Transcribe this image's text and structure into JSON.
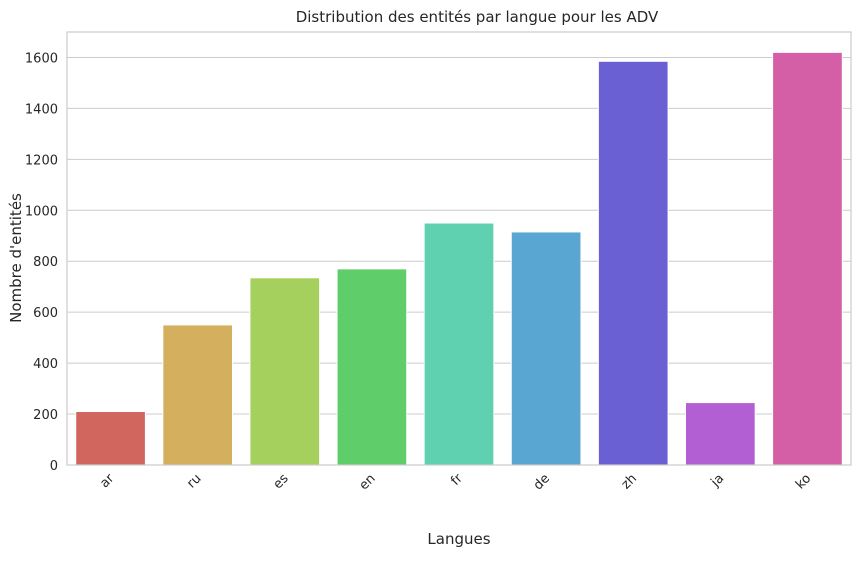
{
  "chart_data": {
    "type": "bar",
    "title": "Distribution des entités par langue pour les ADV",
    "xlabel": "Langues",
    "ylabel": "Nombre d'entités",
    "categories": [
      "ar",
      "ru",
      "es",
      "en",
      "fr",
      "de",
      "zh",
      "ja",
      "ko"
    ],
    "values": [
      210,
      550,
      735,
      770,
      950,
      915,
      1585,
      245,
      1620
    ],
    "colors": [
      "#d1665e",
      "#d4b05e",
      "#a6d05e",
      "#5fce6a",
      "#5fd0b0",
      "#5aa6d3",
      "#6b5fd4",
      "#b35fd4",
      "#d45fa6"
    ],
    "ylim": [
      0,
      1700
    ],
    "yticks": [
      0,
      200,
      400,
      600,
      800,
      1000,
      1200,
      1400,
      1600
    ],
    "grid": "horizontal"
  }
}
